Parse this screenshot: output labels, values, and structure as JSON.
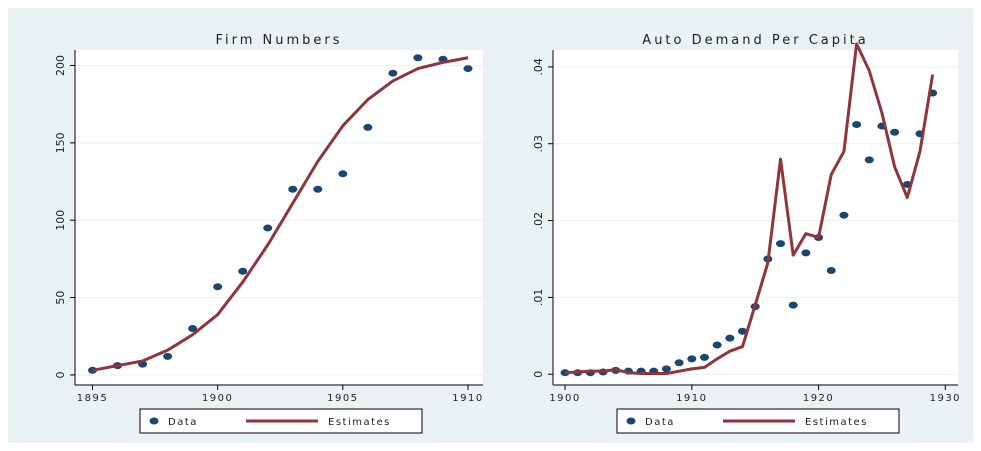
{
  "chart_data": [
    {
      "type": "line",
      "title": "Firm Numbers",
      "x": [
        1895,
        1896,
        1897,
        1898,
        1899,
        1900,
        1901,
        1902,
        1903,
        1904,
        1905,
        1906,
        1907,
        1908,
        1909,
        1910
      ],
      "series": [
        {
          "name": "Data",
          "type": "scatter",
          "color": "#1a476f",
          "values": [
            3,
            6,
            7,
            12,
            30,
            57,
            67,
            95,
            120,
            120,
            130,
            160,
            195,
            205,
            204,
            198
          ]
        },
        {
          "name": "Estimates",
          "type": "line",
          "color": "#90353b",
          "values": [
            3,
            6,
            9,
            16,
            26,
            39,
            60,
            84,
            111,
            138,
            161,
            178,
            190,
            198,
            202,
            205
          ]
        }
      ],
      "xlim": [
        1894.3,
        1910.6
      ],
      "xticks": [
        1895,
        1900,
        1905,
        1910
      ],
      "ylim": [
        -6.5,
        210
      ],
      "yticks": [
        0,
        50,
        100,
        150,
        200
      ],
      "grid": true
    },
    {
      "type": "line",
      "title": "Auto Demand Per Capita",
      "x": [
        1900,
        1901,
        1902,
        1903,
        1904,
        1905,
        1906,
        1907,
        1908,
        1909,
        1910,
        1911,
        1912,
        1913,
        1914,
        1915,
        1916,
        1917,
        1918,
        1919,
        1920,
        1921,
        1922,
        1923,
        1924,
        1925,
        1926,
        1927,
        1928,
        1929
      ],
      "series": [
        {
          "name": "Data",
          "type": "scatter",
          "color": "#1a476f",
          "values": [
            0.0002,
            0.0002,
            0.0002,
            0.0003,
            0.0005,
            0.0004,
            0.0004,
            0.0004,
            0.0007,
            0.0015,
            0.002,
            0.0022,
            0.0038,
            0.0047,
            0.0056,
            0.0088,
            0.015,
            0.017,
            0.009,
            0.0158,
            0.0178,
            0.0135,
            0.0207,
            0.0325,
            0.0279,
            0.0323,
            0.0315,
            0.0247,
            0.0313,
            0.0366
          ]
        },
        {
          "name": "Estimates",
          "type": "line",
          "color": "#90353b",
          "values": [
            0.0002,
            0.0003,
            0.0004,
            0.0004,
            0.0006,
            0.0002,
            0.0001,
            0.0001,
            0.0001,
            0.0004,
            0.0007,
            0.0009,
            0.002,
            0.003,
            0.0036,
            0.009,
            0.0145,
            0.028,
            0.0155,
            0.0183,
            0.0178,
            0.026,
            0.029,
            0.043,
            0.0395,
            0.034,
            0.027,
            0.023,
            0.029,
            0.039
          ]
        }
      ],
      "xlim": [
        1899.05,
        1931.0
      ],
      "xticks": [
        1900,
        1910,
        1920,
        1930
      ],
      "ylim": [
        -0.0014,
        0.0422
      ],
      "yticks": [
        0,
        {
          "value": 0.01,
          "label": ".01"
        },
        {
          "value": 0.02,
          "label": ".02"
        },
        {
          "value": 0.03,
          "label": ".03"
        },
        {
          "value": 0.04,
          "label": ".04"
        }
      ],
      "grid": true
    }
  ]
}
